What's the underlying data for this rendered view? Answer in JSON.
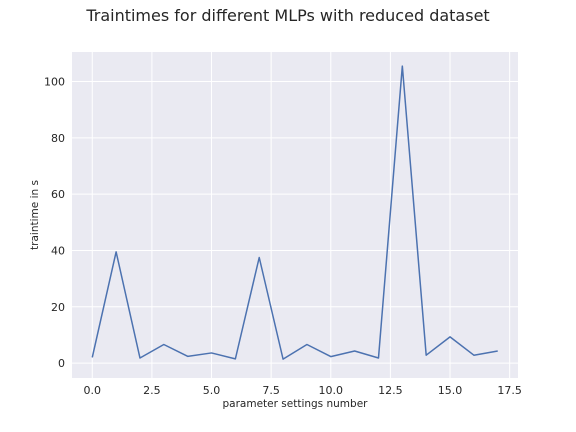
{
  "chart_data": {
    "type": "line",
    "title": "Traintimes for different MLPs with reduced dataset",
    "xlabel": "parameter settings number",
    "ylabel": "traintime in s",
    "xlim": [
      -0.85,
      17.85
    ],
    "ylim": [
      -5.3,
      110.5
    ],
    "xticks": [
      0.0,
      2.5,
      5.0,
      7.5,
      10.0,
      12.5,
      15.0,
      17.5
    ],
    "xtick_labels": [
      "0.0",
      "2.5",
      "5.0",
      "7.5",
      "10.0",
      "12.5",
      "15.0",
      "17.5"
    ],
    "yticks": [
      0,
      20,
      40,
      60,
      80,
      100
    ],
    "ytick_labels": [
      "0",
      "20",
      "40",
      "60",
      "80",
      "100"
    ],
    "grid": true,
    "background": "#eaeaf2",
    "line_color": "#4c72b0",
    "series": [
      {
        "x": [
          0,
          1,
          2,
          3,
          4,
          5,
          6,
          7,
          8,
          9,
          10,
          11,
          12,
          13,
          14,
          15,
          16,
          17
        ],
        "values": [
          2.0,
          39.5,
          1.8,
          6.6,
          2.4,
          3.6,
          1.5,
          37.5,
          1.4,
          6.6,
          2.3,
          4.3,
          1.8,
          105.5,
          2.8,
          9.3,
          2.8,
          4.3
        ]
      }
    ]
  }
}
